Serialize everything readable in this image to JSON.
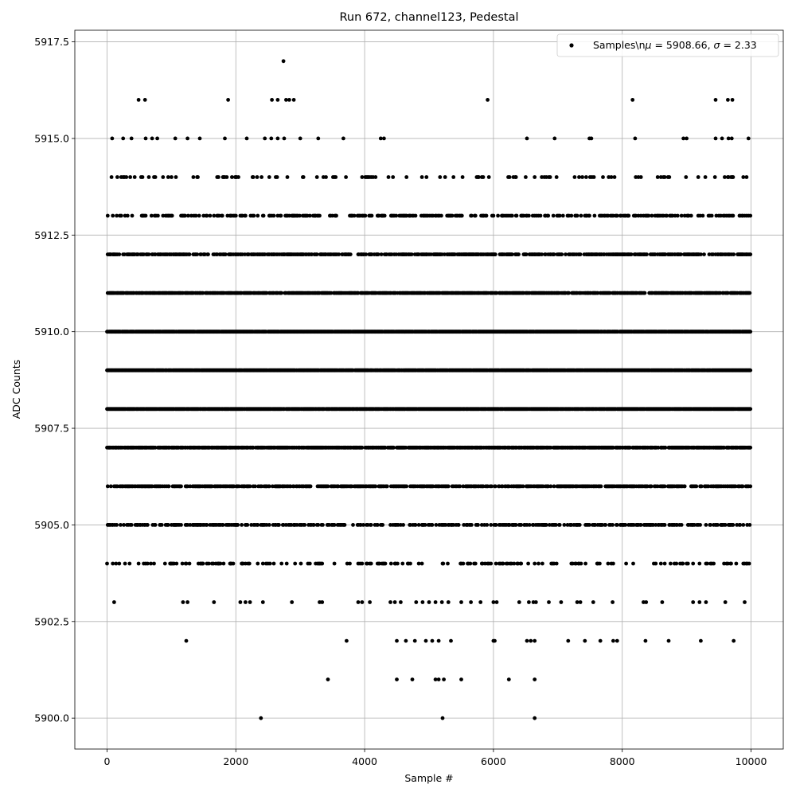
{
  "chart_data": {
    "type": "scatter",
    "title": "Run 672, channel123, Pedestal",
    "xlabel": "Sample #",
    "ylabel": "ADC Counts",
    "xlim": [
      -500,
      10500
    ],
    "ylim": [
      5899.2,
      5917.8
    ],
    "x_ticks": [
      0,
      2000,
      4000,
      6000,
      8000,
      10000
    ],
    "x_tick_labels": [
      "0",
      "2000",
      "4000",
      "6000",
      "8000",
      "10000"
    ],
    "y_ticks": [
      5900.0,
      5902.5,
      5905.0,
      5907.5,
      5910.0,
      5912.5,
      5915.0,
      5917.5
    ],
    "y_tick_labels": [
      "5900.0",
      "5902.5",
      "5905.0",
      "5907.5",
      "5910.0",
      "5912.5",
      "5915.0",
      "5917.5"
    ],
    "grid": true,
    "legend": {
      "placement": "top-right",
      "label_prefix": "Samples\\n",
      "label_rest": " = 5908.66, ",
      "label_tail": " = 2.33",
      "mu_symbol": "μ",
      "sigma_symbol": "σ"
    },
    "marker_color": "#000000",
    "series": [
      {
        "name": "Samples",
        "x_range": [
          0,
          9990
        ],
        "dense_levels": [
          {
            "y": 5906,
            "density": 0.55
          },
          {
            "y": 5907,
            "density": 0.75
          },
          {
            "y": 5908,
            "density": 0.95
          },
          {
            "y": 5909,
            "density": 0.95
          },
          {
            "y": 5910,
            "density": 0.95
          },
          {
            "y": 5911,
            "density": 0.75
          },
          {
            "y": 5912,
            "density": 0.5
          },
          {
            "y": 5905,
            "density": 0.4
          },
          {
            "y": 5913,
            "density": 0.3
          },
          {
            "y": 5904,
            "density": 0.18
          },
          {
            "y": 5914,
            "density": 0.12
          }
        ],
        "points": [
          [
            110,
            5903
          ],
          [
            1180,
            5903
          ],
          [
            1250,
            5903
          ],
          [
            1660,
            5903
          ],
          [
            2070,
            5903
          ],
          [
            2150,
            5903
          ],
          [
            2220,
            5903
          ],
          [
            2420,
            5903
          ],
          [
            2870,
            5903
          ],
          [
            3300,
            5903
          ],
          [
            3340,
            5903
          ],
          [
            3900,
            5903
          ],
          [
            3960,
            5903
          ],
          [
            4080,
            5903
          ],
          [
            4400,
            5903
          ],
          [
            4470,
            5903
          ],
          [
            4560,
            5903
          ],
          [
            4800,
            5903
          ],
          [
            4900,
            5903
          ],
          [
            5000,
            5903
          ],
          [
            5100,
            5903
          ],
          [
            5200,
            5903
          ],
          [
            5300,
            5903
          ],
          [
            5500,
            5903
          ],
          [
            5650,
            5903
          ],
          [
            5800,
            5903
          ],
          [
            6000,
            5903
          ],
          [
            6050,
            5903
          ],
          [
            6400,
            5903
          ],
          [
            6550,
            5903
          ],
          [
            6620,
            5903
          ],
          [
            6660,
            5903
          ],
          [
            6860,
            5903
          ],
          [
            7050,
            5903
          ],
          [
            7300,
            5903
          ],
          [
            7350,
            5903
          ],
          [
            7550,
            5903
          ],
          [
            7850,
            5903
          ],
          [
            8330,
            5903
          ],
          [
            8370,
            5903
          ],
          [
            8620,
            5903
          ],
          [
            9100,
            5903
          ],
          [
            9200,
            5903
          ],
          [
            9300,
            5903
          ],
          [
            9600,
            5903
          ],
          [
            9900,
            5903
          ],
          [
            80,
            5915
          ],
          [
            250,
            5915
          ],
          [
            380,
            5915
          ],
          [
            600,
            5915
          ],
          [
            700,
            5915
          ],
          [
            780,
            5915
          ],
          [
            1060,
            5915
          ],
          [
            1250,
            5915
          ],
          [
            1440,
            5915
          ],
          [
            1830,
            5915
          ],
          [
            2170,
            5915
          ],
          [
            2450,
            5915
          ],
          [
            2550,
            5915
          ],
          [
            2650,
            5915
          ],
          [
            2750,
            5915
          ],
          [
            3000,
            5915
          ],
          [
            3280,
            5915
          ],
          [
            3670,
            5915
          ],
          [
            4250,
            5915
          ],
          [
            4300,
            5915
          ],
          [
            6520,
            5915
          ],
          [
            6950,
            5915
          ],
          [
            7490,
            5915
          ],
          [
            7520,
            5915
          ],
          [
            8200,
            5915
          ],
          [
            8950,
            5915
          ],
          [
            9000,
            5915
          ],
          [
            9450,
            5915
          ],
          [
            9550,
            5915
          ],
          [
            9650,
            5915
          ],
          [
            9700,
            5915
          ],
          [
            9960,
            5915
          ],
          [
            1230,
            5902
          ],
          [
            3720,
            5902
          ],
          [
            4500,
            5902
          ],
          [
            4640,
            5902
          ],
          [
            4780,
            5902
          ],
          [
            4950,
            5902
          ],
          [
            5050,
            5902
          ],
          [
            5150,
            5902
          ],
          [
            5340,
            5902
          ],
          [
            6000,
            5902
          ],
          [
            6020,
            5902
          ],
          [
            6520,
            5902
          ],
          [
            6580,
            5902
          ],
          [
            6640,
            5902
          ],
          [
            7160,
            5902
          ],
          [
            7420,
            5902
          ],
          [
            7660,
            5902
          ],
          [
            7860,
            5902
          ],
          [
            7920,
            5902
          ],
          [
            8360,
            5902
          ],
          [
            8720,
            5902
          ],
          [
            9220,
            5902
          ],
          [
            9730,
            5902
          ],
          [
            3430,
            5901
          ],
          [
            4500,
            5901
          ],
          [
            4740,
            5901
          ],
          [
            5100,
            5901
          ],
          [
            5150,
            5901
          ],
          [
            5230,
            5901
          ],
          [
            5500,
            5901
          ],
          [
            6240,
            5901
          ],
          [
            6640,
            5901
          ],
          [
            490,
            5916
          ],
          [
            590,
            5916
          ],
          [
            1880,
            5916
          ],
          [
            2560,
            5916
          ],
          [
            2650,
            5916
          ],
          [
            2780,
            5916
          ],
          [
            2830,
            5916
          ],
          [
            2900,
            5916
          ],
          [
            5910,
            5916
          ],
          [
            8160,
            5916
          ],
          [
            9450,
            5916
          ],
          [
            9640,
            5916
          ],
          [
            9710,
            5916
          ],
          [
            2390,
            5900
          ],
          [
            5210,
            5900
          ],
          [
            6640,
            5900
          ],
          [
            2740,
            5917
          ]
        ]
      }
    ]
  }
}
